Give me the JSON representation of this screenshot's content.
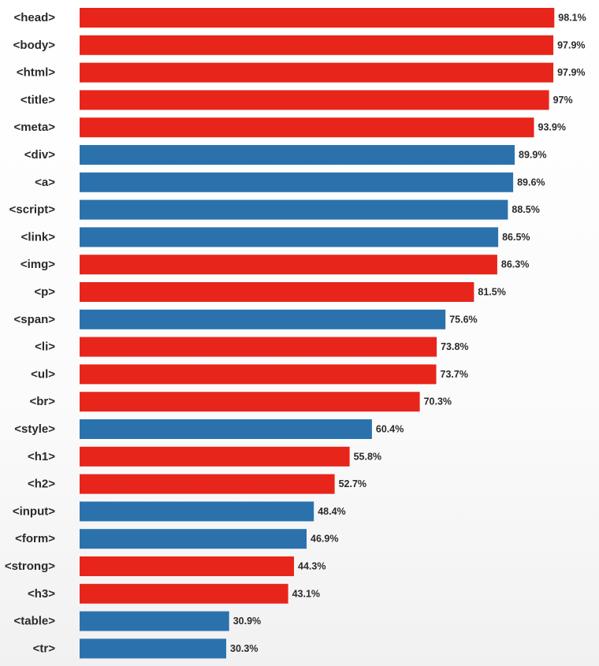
{
  "chart_data": {
    "type": "bar",
    "orientation": "horizontal",
    "title": "",
    "xlabel": "",
    "ylabel": "",
    "xlim": [
      0,
      100
    ],
    "grid": false,
    "legend": "none",
    "value_suffix": "%",
    "colors": {
      "red": "#e8251b",
      "blue": "#2b72ad"
    },
    "bars": [
      {
        "label": "<head>",
        "value": 98.1,
        "display": "98.1%",
        "color": "red"
      },
      {
        "label": "<body>",
        "value": 97.9,
        "display": "97.9%",
        "color": "red"
      },
      {
        "label": "<html>",
        "value": 97.9,
        "display": "97.9%",
        "color": "red"
      },
      {
        "label": "<title>",
        "value": 97,
        "display": "97%",
        "color": "red"
      },
      {
        "label": "<meta>",
        "value": 93.9,
        "display": "93.9%",
        "color": "red"
      },
      {
        "label": "<div>",
        "value": 89.9,
        "display": "89.9%",
        "color": "blue"
      },
      {
        "label": "<a>",
        "value": 89.6,
        "display": "89.6%",
        "color": "blue"
      },
      {
        "label": "<script>",
        "value": 88.5,
        "display": "88.5%",
        "color": "blue"
      },
      {
        "label": "<link>",
        "value": 86.5,
        "display": "86.5%",
        "color": "blue"
      },
      {
        "label": "<img>",
        "value": 86.3,
        "display": "86.3%",
        "color": "red"
      },
      {
        "label": "<p>",
        "value": 81.5,
        "display": "81.5%",
        "color": "red"
      },
      {
        "label": "<span>",
        "value": 75.6,
        "display": "75.6%",
        "color": "blue"
      },
      {
        "label": "<li>",
        "value": 73.8,
        "display": "73.8%",
        "color": "red"
      },
      {
        "label": "<ul>",
        "value": 73.7,
        "display": "73.7%",
        "color": "red"
      },
      {
        "label": "<br>",
        "value": 70.3,
        "display": "70.3%",
        "color": "red"
      },
      {
        "label": "<style>",
        "value": 60.4,
        "display": "60.4%",
        "color": "blue"
      },
      {
        "label": "<h1>",
        "value": 55.8,
        "display": "55.8%",
        "color": "red"
      },
      {
        "label": "<h2>",
        "value": 52.7,
        "display": "52.7%",
        "color": "red"
      },
      {
        "label": "<input>",
        "value": 48.4,
        "display": "48.4%",
        "color": "blue"
      },
      {
        "label": "<form>",
        "value": 46.9,
        "display": "46.9%",
        "color": "blue"
      },
      {
        "label": "<strong>",
        "value": 44.3,
        "display": "44.3%",
        "color": "red"
      },
      {
        "label": "<h3>",
        "value": 43.1,
        "display": "43.1%",
        "color": "red"
      },
      {
        "label": "<table>",
        "value": 30.9,
        "display": "30.9%",
        "color": "blue"
      },
      {
        "label": "<tr>",
        "value": 30.3,
        "display": "30.3%",
        "color": "blue"
      }
    ]
  }
}
